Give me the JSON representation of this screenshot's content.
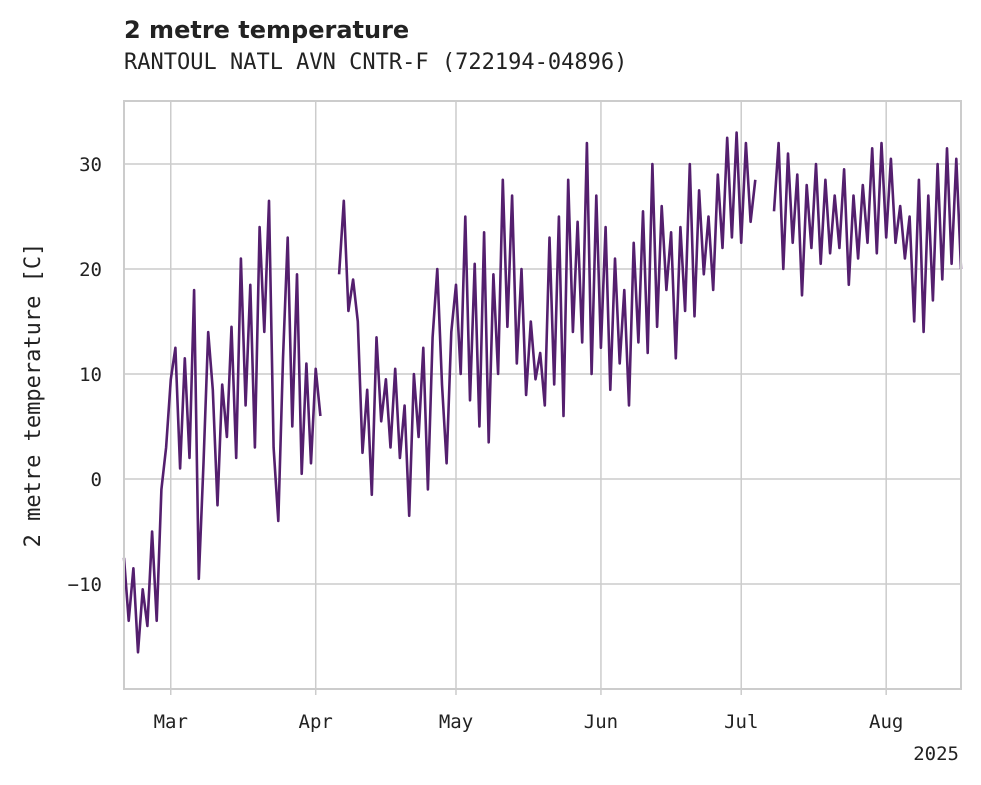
{
  "chart_data": {
    "type": "line",
    "title": "2 metre temperature",
    "subtitle": "RANTOUL NATL AVN CNTR-F (722194-04896)",
    "ylabel": "2 metre temperature [C]",
    "xlabel": "",
    "year_label": "2025",
    "ylim": [
      -20,
      36
    ],
    "xlim": [
      "2025-02-19",
      "2025-08-17"
    ],
    "yticks": [
      -10,
      0,
      10,
      20,
      30
    ],
    "xticks": [
      {
        "date": "2025-03-01",
        "label": "Mar"
      },
      {
        "date": "2025-04-01",
        "label": "Apr"
      },
      {
        "date": "2025-05-01",
        "label": "May"
      },
      {
        "date": "2025-06-01",
        "label": "Jun"
      },
      {
        "date": "2025-07-01",
        "label": "Jul"
      },
      {
        "date": "2025-08-01",
        "label": "Aug"
      }
    ],
    "grid": true,
    "line_color": "#541f6e",
    "series": [
      {
        "name": "",
        "segments": [
          [
            [
              "2025-02-19",
              -7.5
            ],
            [
              "2025-02-20",
              -13.5
            ],
            [
              "2025-02-21",
              -8.5
            ],
            [
              "2025-02-22",
              -16.5
            ],
            [
              "2025-02-23",
              -10.5
            ],
            [
              "2025-02-24",
              -14.0
            ],
            [
              "2025-02-25",
              -5.0
            ],
            [
              "2025-02-26",
              -13.5
            ],
            [
              "2025-02-27",
              -1.0
            ],
            [
              "2025-02-28",
              3.0
            ],
            [
              "2025-03-01",
              9.5
            ],
            [
              "2025-03-02",
              12.5
            ],
            [
              "2025-03-03",
              1.0
            ],
            [
              "2025-03-04",
              11.5
            ],
            [
              "2025-03-05",
              2.0
            ],
            [
              "2025-03-06",
              18.0
            ],
            [
              "2025-03-07",
              -9.5
            ],
            [
              "2025-03-08",
              1.5
            ],
            [
              "2025-03-09",
              14.0
            ],
            [
              "2025-03-10",
              8.5
            ],
            [
              "2025-03-11",
              -2.5
            ],
            [
              "2025-03-12",
              9.0
            ],
            [
              "2025-03-13",
              4.0
            ],
            [
              "2025-03-14",
              14.5
            ],
            [
              "2025-03-15",
              2.0
            ],
            [
              "2025-03-16",
              21.0
            ],
            [
              "2025-03-17",
              7.0
            ],
            [
              "2025-03-18",
              18.5
            ],
            [
              "2025-03-19",
              3.0
            ],
            [
              "2025-03-20",
              24.0
            ],
            [
              "2025-03-21",
              14.0
            ],
            [
              "2025-03-22",
              26.5
            ],
            [
              "2025-03-23",
              3.0
            ],
            [
              "2025-03-24",
              -4.0
            ],
            [
              "2025-03-25",
              11.5
            ],
            [
              "2025-03-26",
              23.0
            ],
            [
              "2025-03-27",
              5.0
            ],
            [
              "2025-03-28",
              19.5
            ],
            [
              "2025-03-29",
              0.5
            ],
            [
              "2025-03-30",
              11.0
            ],
            [
              "2025-03-31",
              1.5
            ],
            [
              "2025-04-01",
              10.5
            ],
            [
              "2025-04-02",
              6.0
            ]
          ],
          [
            [
              "2025-04-06",
              19.5
            ],
            [
              "2025-04-07",
              26.5
            ],
            [
              "2025-04-08",
              16.0
            ],
            [
              "2025-04-09",
              19.0
            ],
            [
              "2025-04-10",
              15.0
            ],
            [
              "2025-04-11",
              2.5
            ],
            [
              "2025-04-12",
              8.5
            ],
            [
              "2025-04-13",
              -1.5
            ],
            [
              "2025-04-14",
              13.5
            ],
            [
              "2025-04-15",
              5.5
            ],
            [
              "2025-04-16",
              9.5
            ],
            [
              "2025-04-17",
              3.0
            ],
            [
              "2025-04-18",
              10.5
            ],
            [
              "2025-04-19",
              2.0
            ],
            [
              "2025-04-20",
              7.0
            ],
            [
              "2025-04-21",
              -3.5
            ],
            [
              "2025-04-22",
              10.0
            ],
            [
              "2025-04-23",
              4.0
            ],
            [
              "2025-04-24",
              12.5
            ],
            [
              "2025-04-25",
              -1.0
            ],
            [
              "2025-04-26",
              13.5
            ],
            [
              "2025-04-27",
              20.0
            ],
            [
              "2025-04-28",
              9.0
            ],
            [
              "2025-04-29",
              1.5
            ],
            [
              "2025-04-30",
              14.0
            ],
            [
              "2025-05-01",
              18.5
            ],
            [
              "2025-05-02",
              10.0
            ],
            [
              "2025-05-03",
              25.0
            ],
            [
              "2025-05-04",
              7.5
            ],
            [
              "2025-05-05",
              20.5
            ],
            [
              "2025-05-06",
              5.0
            ],
            [
              "2025-05-07",
              23.5
            ],
            [
              "2025-05-08",
              3.5
            ],
            [
              "2025-05-09",
              19.5
            ],
            [
              "2025-05-10",
              10.0
            ],
            [
              "2025-05-11",
              28.5
            ],
            [
              "2025-05-12",
              14.5
            ],
            [
              "2025-05-13",
              27.0
            ],
            [
              "2025-05-14",
              11.0
            ],
            [
              "2025-05-15",
              20.0
            ],
            [
              "2025-05-16",
              8.0
            ],
            [
              "2025-05-17",
              15.0
            ],
            [
              "2025-05-18",
              9.5
            ],
            [
              "2025-05-19",
              12.0
            ],
            [
              "2025-05-20",
              7.0
            ],
            [
              "2025-05-21",
              23.0
            ],
            [
              "2025-05-22",
              9.0
            ],
            [
              "2025-05-23",
              25.0
            ],
            [
              "2025-05-24",
              6.0
            ],
            [
              "2025-05-25",
              28.5
            ],
            [
              "2025-05-26",
              14.0
            ],
            [
              "2025-05-27",
              24.5
            ],
            [
              "2025-05-28",
              13.0
            ],
            [
              "2025-05-29",
              32.0
            ],
            [
              "2025-05-30",
              10.0
            ],
            [
              "2025-05-31",
              27.0
            ],
            [
              "2025-06-01",
              12.5
            ],
            [
              "2025-06-02",
              24.0
            ],
            [
              "2025-06-03",
              8.5
            ],
            [
              "2025-06-04",
              21.0
            ],
            [
              "2025-06-05",
              11.0
            ],
            [
              "2025-06-06",
              18.0
            ],
            [
              "2025-06-07",
              7.0
            ],
            [
              "2025-06-08",
              22.5
            ],
            [
              "2025-06-09",
              13.0
            ],
            [
              "2025-06-10",
              25.5
            ],
            [
              "2025-06-11",
              12.0
            ],
            [
              "2025-06-12",
              30.0
            ],
            [
              "2025-06-13",
              14.5
            ],
            [
              "2025-06-14",
              26.0
            ],
            [
              "2025-06-15",
              18.0
            ],
            [
              "2025-06-16",
              23.5
            ],
            [
              "2025-06-17",
              11.5
            ],
            [
              "2025-06-18",
              24.0
            ],
            [
              "2025-06-19",
              16.0
            ],
            [
              "2025-06-20",
              30.0
            ],
            [
              "2025-06-21",
              15.5
            ],
            [
              "2025-06-22",
              27.5
            ],
            [
              "2025-06-23",
              19.5
            ],
            [
              "2025-06-24",
              25.0
            ],
            [
              "2025-06-25",
              18.0
            ],
            [
              "2025-06-26",
              29.0
            ],
            [
              "2025-06-27",
              22.0
            ],
            [
              "2025-06-28",
              32.5
            ],
            [
              "2025-06-29",
              23.0
            ],
            [
              "2025-06-30",
              33.0
            ],
            [
              "2025-07-01",
              22.5
            ],
            [
              "2025-07-02",
              32.0
            ],
            [
              "2025-07-03",
              24.5
            ],
            [
              "2025-07-04",
              28.5
            ]
          ],
          [
            [
              "2025-07-08",
              25.5
            ],
            [
              "2025-07-09",
              32.0
            ],
            [
              "2025-07-10",
              20.0
            ],
            [
              "2025-07-11",
              31.0
            ],
            [
              "2025-07-12",
              22.5
            ],
            [
              "2025-07-13",
              29.0
            ],
            [
              "2025-07-14",
              17.5
            ],
            [
              "2025-07-15",
              28.0
            ],
            [
              "2025-07-16",
              22.0
            ],
            [
              "2025-07-17",
              30.0
            ],
            [
              "2025-07-18",
              20.5
            ],
            [
              "2025-07-19",
              28.5
            ],
            [
              "2025-07-20",
              21.5
            ],
            [
              "2025-07-21",
              27.0
            ],
            [
              "2025-07-22",
              22.0
            ],
            [
              "2025-07-23",
              29.5
            ],
            [
              "2025-07-24",
              18.5
            ],
            [
              "2025-07-25",
              27.0
            ],
            [
              "2025-07-26",
              21.0
            ],
            [
              "2025-07-27",
              28.0
            ],
            [
              "2025-07-28",
              22.5
            ],
            [
              "2025-07-29",
              31.5
            ],
            [
              "2025-07-30",
              21.5
            ],
            [
              "2025-07-31",
              32.0
            ],
            [
              "2025-08-01",
              23.0
            ],
            [
              "2025-08-02",
              30.5
            ],
            [
              "2025-08-03",
              22.5
            ],
            [
              "2025-08-04",
              26.0
            ],
            [
              "2025-08-05",
              21.0
            ],
            [
              "2025-08-06",
              25.0
            ],
            [
              "2025-08-07",
              15.0
            ],
            [
              "2025-08-08",
              28.5
            ],
            [
              "2025-08-09",
              14.0
            ],
            [
              "2025-08-10",
              27.0
            ],
            [
              "2025-08-11",
              17.0
            ],
            [
              "2025-08-12",
              30.0
            ],
            [
              "2025-08-13",
              19.0
            ],
            [
              "2025-08-14",
              31.5
            ],
            [
              "2025-08-15",
              20.5
            ],
            [
              "2025-08-16",
              30.5
            ],
            [
              "2025-08-17",
              20.0
            ]
          ]
        ]
      }
    ]
  }
}
